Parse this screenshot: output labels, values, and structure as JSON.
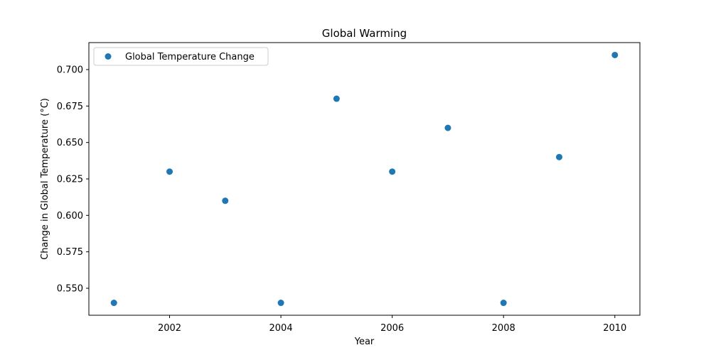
{
  "chart_data": {
    "type": "scatter",
    "title": "Global Warming",
    "xlabel": "Year",
    "ylabel": "Change in Global Temperature (°C)",
    "series": [
      {
        "name": "Global Temperature Change",
        "color": "#1f77b4",
        "x": [
          2001,
          2002,
          2003,
          2004,
          2005,
          2006,
          2007,
          2008,
          2009,
          2010
        ],
        "y": [
          0.54,
          0.63,
          0.61,
          0.54,
          0.68,
          0.63,
          0.66,
          0.54,
          0.64,
          0.71
        ]
      }
    ],
    "xlim": [
      2000.55,
      2010.45
    ],
    "ylim": [
      0.5315,
      0.7185
    ],
    "xticks": [
      2002,
      2004,
      2006,
      2008,
      2010
    ],
    "xtick_labels": [
      "2002",
      "2004",
      "2006",
      "2008",
      "2010"
    ],
    "yticks": [
      0.55,
      0.575,
      0.6,
      0.625,
      0.65,
      0.675,
      0.7
    ],
    "ytick_labels": [
      "0.550",
      "0.575",
      "0.600",
      "0.625",
      "0.650",
      "0.675",
      "0.700"
    ],
    "grid": false,
    "legend_position": "upper-left"
  }
}
